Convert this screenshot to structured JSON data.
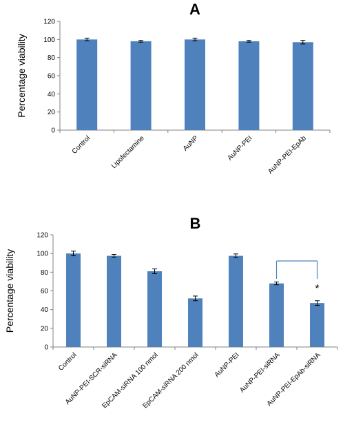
{
  "chart_data": [
    {
      "type": "bar",
      "title": "A",
      "ylabel": "Percentage viability",
      "ylim": [
        0,
        120
      ],
      "yticks": [
        0,
        20,
        40,
        60,
        80,
        100,
        120
      ],
      "categories": [
        "Control",
        "Lipofectamine",
        "AuNP",
        "AuNP-PEI",
        "AuNP-PEI-EpAb"
      ],
      "values": [
        100,
        98,
        100,
        98,
        97
      ],
      "errors": [
        1.5,
        1,
        1.5,
        1,
        2
      ],
      "bar_color": "#4f81bd",
      "grid": false
    },
    {
      "type": "bar",
      "title": "B",
      "ylabel": "Percentage viability",
      "ylim": [
        0,
        120
      ],
      "yticks": [
        0,
        20,
        40,
        60,
        80,
        100,
        120
      ],
      "categories": [
        "Control",
        "AuNP-PEI-SCR-siRNA",
        "EpCAM-siRNA 100 nmol",
        "EpCAM-siRNA 200 nmol",
        "AuNP-PEI",
        "AuNP-PEI-siRNA",
        "AuNP-PEI-EpAb-siRNA"
      ],
      "values": [
        100,
        97.5,
        81,
        52,
        97.5,
        68,
        47
      ],
      "errors": [
        2.5,
        1.5,
        2.5,
        2.5,
        2,
        1.5,
        2.5
      ],
      "bar_color": "#4f81bd",
      "grid": false,
      "annotation": {
        "text": "*",
        "bracket_between": [
          "AuNP-PEI-siRNA",
          "AuNP-PEI-EpAb-siRNA"
        ]
      }
    }
  ]
}
